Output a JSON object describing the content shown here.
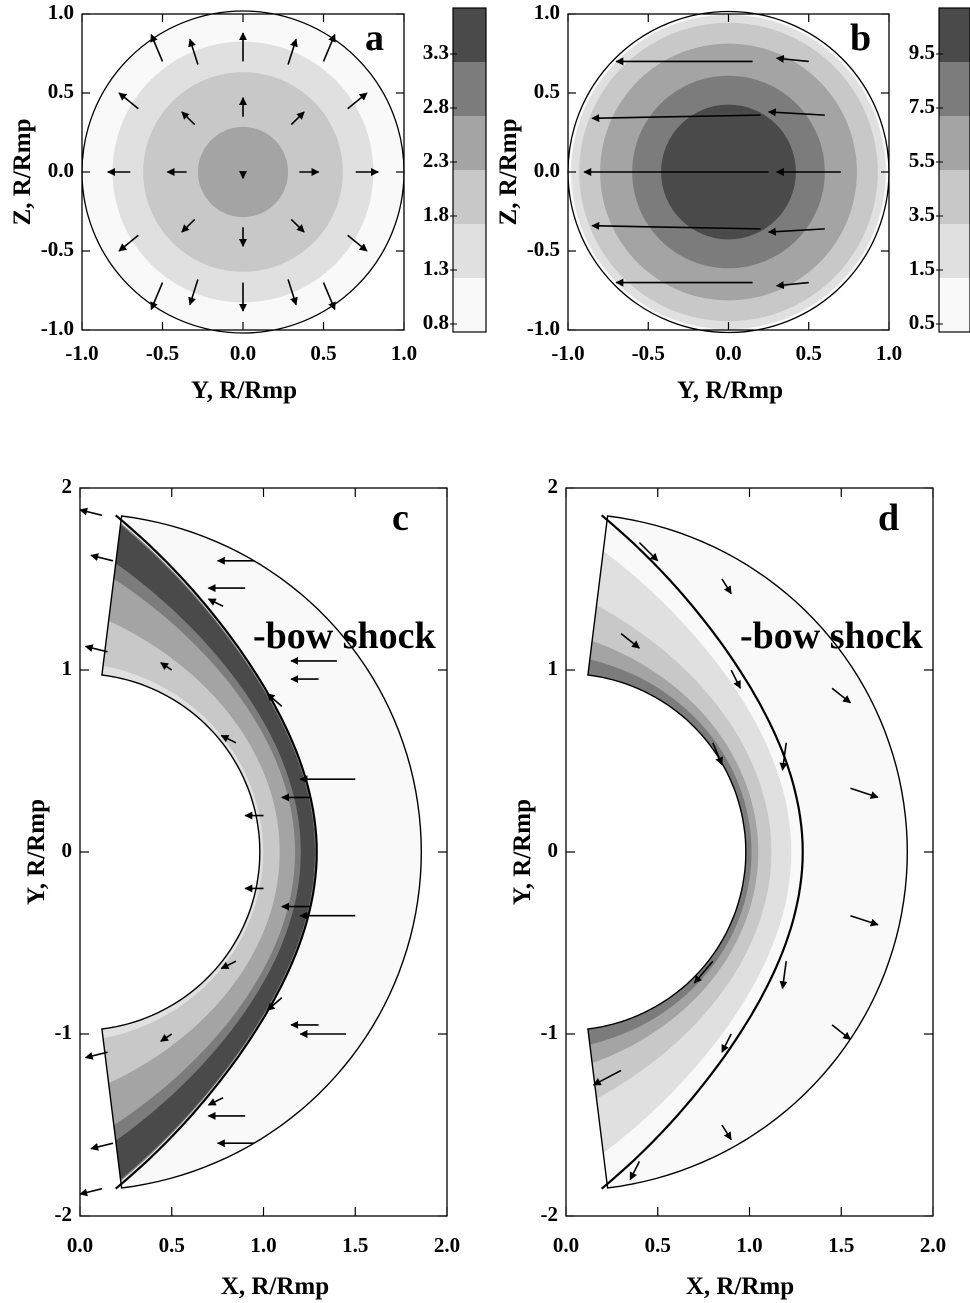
{
  "colors": {
    "levels_light_to_dark": [
      "#f9f9f9",
      "#e0e0e0",
      "#c8c8c8",
      "#a4a4a4",
      "#7c7c7c",
      "#4a4a4a"
    ],
    "line": "#000000"
  },
  "chart_data": [
    {
      "id": "a",
      "type": "contour",
      "panel_label": "a",
      "xlabel": "Y, R/Rmp",
      "ylabel": "Z, R/Rmp",
      "xlim": [
        -1.0,
        1.0
      ],
      "ylim": [
        -1.0,
        1.0
      ],
      "xticks": [
        "-1.0",
        "-0.5",
        "0.0",
        "0.5",
        "1.0"
      ],
      "yticks": [
        "-1.0",
        "-0.5",
        "0.0",
        "0.5",
        "1.0"
      ],
      "colorbar_ticks": [
        "0.8",
        "1.3",
        "1.8",
        "2.3",
        "2.8",
        "3.3"
      ],
      "contour_disks": [
        {
          "r": 1.0,
          "level": 0
        },
        {
          "r": 0.81,
          "level": 1
        },
        {
          "r": 0.62,
          "level": 2
        },
        {
          "r": 0.28,
          "level": 3
        }
      ],
      "vectors": [
        {
          "x": 0.0,
          "y": 0.0,
          "dx": 0.0,
          "dy": -0.04
        },
        {
          "x": -0.35,
          "y": 0.0,
          "dx": -0.12,
          "dy": 0.0
        },
        {
          "x": 0.35,
          "y": 0.0,
          "dx": 0.12,
          "dy": 0.0
        },
        {
          "x": 0.0,
          "y": 0.35,
          "dx": 0.0,
          "dy": 0.12
        },
        {
          "x": 0.0,
          "y": -0.35,
          "dx": 0.0,
          "dy": -0.12
        },
        {
          "x": -0.3,
          "y": 0.3,
          "dx": -0.08,
          "dy": 0.08
        },
        {
          "x": 0.3,
          "y": 0.3,
          "dx": 0.08,
          "dy": 0.08
        },
        {
          "x": -0.3,
          "y": -0.3,
          "dx": -0.08,
          "dy": -0.08
        },
        {
          "x": 0.3,
          "y": -0.3,
          "dx": 0.08,
          "dy": -0.08
        },
        {
          "x": -0.7,
          "y": 0.0,
          "dx": -0.14,
          "dy": 0.0
        },
        {
          "x": 0.7,
          "y": 0.0,
          "dx": 0.14,
          "dy": 0.0
        },
        {
          "x": 0.0,
          "y": 0.7,
          "dx": 0.0,
          "dy": 0.18
        },
        {
          "x": 0.0,
          "y": -0.7,
          "dx": 0.0,
          "dy": -0.18
        },
        {
          "x": -0.65,
          "y": 0.4,
          "dx": -0.12,
          "dy": 0.1
        },
        {
          "x": 0.65,
          "y": 0.4,
          "dx": 0.12,
          "dy": 0.1
        },
        {
          "x": -0.65,
          "y": -0.4,
          "dx": -0.12,
          "dy": -0.1
        },
        {
          "x": 0.65,
          "y": -0.4,
          "dx": 0.12,
          "dy": -0.1
        },
        {
          "x": -0.28,
          "y": 0.68,
          "dx": -0.05,
          "dy": 0.16
        },
        {
          "x": 0.28,
          "y": 0.68,
          "dx": 0.05,
          "dy": 0.16
        },
        {
          "x": -0.28,
          "y": -0.68,
          "dx": -0.05,
          "dy": -0.16
        },
        {
          "x": 0.28,
          "y": -0.68,
          "dx": 0.05,
          "dy": -0.16
        },
        {
          "x": -0.5,
          "y": 0.7,
          "dx": -0.07,
          "dy": 0.17
        },
        {
          "x": 0.5,
          "y": 0.7,
          "dx": 0.07,
          "dy": 0.17
        },
        {
          "x": -0.5,
          "y": -0.7,
          "dx": -0.07,
          "dy": -0.17
        },
        {
          "x": 0.5,
          "y": -0.7,
          "dx": 0.07,
          "dy": -0.17
        }
      ]
    },
    {
      "id": "b",
      "type": "contour",
      "panel_label": "b",
      "xlabel": "Y, R/Rmp",
      "ylabel": "Z, R/Rmp",
      "xlim": [
        -1.0,
        1.0
      ],
      "ylim": [
        -1.0,
        1.0
      ],
      "xticks": [
        "-1.0",
        "-0.5",
        "0.0",
        "0.5",
        "1.0"
      ],
      "yticks": [
        "-1.0",
        "-0.5",
        "0.0",
        "0.5",
        "1.0"
      ],
      "colorbar_ticks": [
        "0.5",
        "1.5",
        "3.5",
        "5.5",
        "7.5",
        "9.5"
      ],
      "contour_disks": [
        {
          "r": 1.0,
          "level": 0
        },
        {
          "r": 0.98,
          "level": 1
        },
        {
          "r": 0.93,
          "level": 2
        },
        {
          "r": 0.8,
          "level": 3
        },
        {
          "r": 0.6,
          "level": 4
        },
        {
          "r": 0.42,
          "level": 5
        }
      ],
      "vectors": [
        {
          "x": 0.15,
          "y": 0.7,
          "dx": -0.85,
          "dy": 0.0
        },
        {
          "x": 0.15,
          "y": -0.7,
          "dx": -0.85,
          "dy": 0.0
        },
        {
          "x": 0.2,
          "y": 0.36,
          "dx": -1.05,
          "dy": -0.02
        },
        {
          "x": 0.2,
          "y": -0.36,
          "dx": -1.05,
          "dy": 0.02
        },
        {
          "x": 0.25,
          "y": 0.0,
          "dx": -1.15,
          "dy": 0.0
        },
        {
          "x": 0.5,
          "y": 0.7,
          "dx": -0.2,
          "dy": 0.02
        },
        {
          "x": 0.5,
          "y": -0.7,
          "dx": -0.2,
          "dy": -0.02
        },
        {
          "x": 0.6,
          "y": 0.36,
          "dx": -0.35,
          "dy": 0.02
        },
        {
          "x": 0.6,
          "y": -0.36,
          "dx": -0.35,
          "dy": -0.02
        },
        {
          "x": 0.7,
          "y": 0.0,
          "dx": -0.4,
          "dy": 0.0
        }
      ]
    },
    {
      "id": "c",
      "type": "contour",
      "panel_label": "c",
      "xlabel": "X, R/Rmp",
      "ylabel": "Y, R/Rmp",
      "xlim": [
        0.0,
        2.0
      ],
      "ylim": [
        -2.0,
        2.0
      ],
      "xticks": [
        "0.0",
        "0.5",
        "1.0",
        "1.5",
        "2.0"
      ],
      "yticks": [
        "2",
        "1",
        "0",
        "-1",
        "-2"
      ],
      "annotation": "-bow shock",
      "r_inner": 0.98,
      "r_outer": 1.86,
      "theta_max_deg": 83,
      "bow_shock": {
        "r0": 1.29,
        "r_edge": 1.86,
        "theta_end_deg": 84
      },
      "bands": [
        {
          "level": 1,
          "fi": 0.0,
          "fo": 1.0
        },
        {
          "level": 2,
          "fi": 0.06,
          "fo": 0.9
        },
        {
          "level": 3,
          "fi": 0.35,
          "fo": 0.8
        },
        {
          "level": 4,
          "fi": 0.62,
          "fo": 0.98
        },
        {
          "level": 5,
          "fi": 0.72,
          "fo": 0.97
        }
      ],
      "vectors": [
        {
          "x": 1.5,
          "y": 0.4,
          "dx": -0.3,
          "dy": 0.0
        },
        {
          "x": 1.5,
          "y": -0.35,
          "dx": -0.3,
          "dy": 0.0
        },
        {
          "x": 1.25,
          "y": 0.3,
          "dx": -0.15,
          "dy": 0.0
        },
        {
          "x": 1.25,
          "y": -0.3,
          "dx": -0.15,
          "dy": 0.0
        },
        {
          "x": 1.4,
          "y": 1.05,
          "dx": -0.25,
          "dy": 0.0
        },
        {
          "x": 1.45,
          "y": -1.0,
          "dx": -0.25,
          "dy": 0.0
        },
        {
          "x": 1.3,
          "y": 0.95,
          "dx": -0.15,
          "dy": 0.0
        },
        {
          "x": 1.3,
          "y": -0.95,
          "dx": -0.15,
          "dy": 0.0
        },
        {
          "x": 0.95,
          "y": 1.6,
          "dx": -0.2,
          "dy": 0.0
        },
        {
          "x": 0.95,
          "y": -1.6,
          "dx": -0.2,
          "dy": 0.0
        },
        {
          "x": 0.9,
          "y": 1.45,
          "dx": -0.2,
          "dy": 0.0
        },
        {
          "x": 0.9,
          "y": -1.45,
          "dx": -0.2,
          "dy": 0.0
        },
        {
          "x": 1.1,
          "y": 0.8,
          "dx": -0.08,
          "dy": 0.07
        },
        {
          "x": 1.1,
          "y": -0.8,
          "dx": -0.08,
          "dy": -0.07
        },
        {
          "x": 0.78,
          "y": 1.35,
          "dx": -0.08,
          "dy": 0.04
        },
        {
          "x": 0.78,
          "y": -1.35,
          "dx": -0.08,
          "dy": -0.04
        },
        {
          "x": 0.12,
          "y": 1.85,
          "dx": -0.12,
          "dy": 0.03
        },
        {
          "x": 0.12,
          "y": -1.85,
          "dx": -0.12,
          "dy": -0.03
        },
        {
          "x": 0.18,
          "y": 1.6,
          "dx": -0.12,
          "dy": 0.03
        },
        {
          "x": 0.18,
          "y": -1.6,
          "dx": -0.12,
          "dy": -0.03
        },
        {
          "x": 0.15,
          "y": 1.1,
          "dx": -0.12,
          "dy": 0.03
        },
        {
          "x": 0.15,
          "y": -1.1,
          "dx": -0.12,
          "dy": -0.03
        },
        {
          "x": 0.5,
          "y": 1.0,
          "dx": -0.06,
          "dy": 0.04
        },
        {
          "x": 0.5,
          "y": -1.0,
          "dx": -0.06,
          "dy": -0.04
        },
        {
          "x": 0.85,
          "y": 0.6,
          "dx": -0.08,
          "dy": 0.04
        },
        {
          "x": 0.85,
          "y": -0.6,
          "dx": -0.08,
          "dy": -0.04
        },
        {
          "x": 1.0,
          "y": 0.2,
          "dx": -0.1,
          "dy": 0.0
        },
        {
          "x": 1.0,
          "y": -0.2,
          "dx": -0.1,
          "dy": 0.0
        }
      ]
    },
    {
      "id": "d",
      "type": "contour",
      "panel_label": "d",
      "xlabel": "X, R/Rmp",
      "ylabel": "Y, R/Rmp",
      "xlim": [
        0.0,
        2.0
      ],
      "ylim": [
        -2.0,
        2.0
      ],
      "xticks": [
        "0.0",
        "0.5",
        "1.0",
        "1.5",
        "2.0"
      ],
      "yticks": [
        "2",
        "1",
        "0",
        "-1",
        "-2"
      ],
      "annotation": "-bow shock",
      "r_inner": 0.98,
      "r_outer": 1.86,
      "theta_max_deg": 83,
      "bow_shock": {
        "r0": 1.29,
        "r_edge": 1.86,
        "theta_end_deg": 84
      },
      "bands": [
        {
          "level": 1,
          "fi": 0.0,
          "fo": 0.8
        },
        {
          "level": 2,
          "fi": 0.0,
          "fo": 0.45
        },
        {
          "level": 3,
          "fi": 0.0,
          "fo": 0.22
        },
        {
          "level": 4,
          "fi": 0.0,
          "fo": 0.1
        }
      ],
      "vectors": [
        {
          "x": 1.55,
          "y": 0.35,
          "dx": 0.15,
          "dy": -0.05
        },
        {
          "x": 1.55,
          "y": -0.35,
          "dx": 0.15,
          "dy": -0.05
        },
        {
          "x": 1.45,
          "y": 0.9,
          "dx": 0.1,
          "dy": -0.08
        },
        {
          "x": 1.45,
          "y": -0.95,
          "dx": 0.1,
          "dy": -0.08
        },
        {
          "x": 1.2,
          "y": 0.6,
          "dx": -0.02,
          "dy": -0.15
        },
        {
          "x": 1.2,
          "y": -0.6,
          "dx": -0.02,
          "dy": -0.15
        },
        {
          "x": 0.9,
          "y": 1.0,
          "dx": 0.05,
          "dy": -0.1
        },
        {
          "x": 0.9,
          "y": -1.0,
          "dx": -0.05,
          "dy": -0.1
        },
        {
          "x": 0.4,
          "y": 1.7,
          "dx": 0.1,
          "dy": -0.1
        },
        {
          "x": 0.4,
          "y": -1.7,
          "dx": -0.05,
          "dy": -0.1
        },
        {
          "x": 0.3,
          "y": 1.2,
          "dx": 0.1,
          "dy": -0.08
        },
        {
          "x": 0.3,
          "y": -1.2,
          "dx": -0.15,
          "dy": -0.08
        },
        {
          "x": 0.8,
          "y": 0.6,
          "dx": 0.05,
          "dy": -0.12
        },
        {
          "x": 0.8,
          "y": -0.6,
          "dx": -0.1,
          "dy": -0.12
        },
        {
          "x": 0.85,
          "y": 1.5,
          "dx": 0.05,
          "dy": -0.08
        },
        {
          "x": 0.85,
          "y": -1.5,
          "dx": 0.05,
          "dy": -0.08
        }
      ]
    }
  ]
}
